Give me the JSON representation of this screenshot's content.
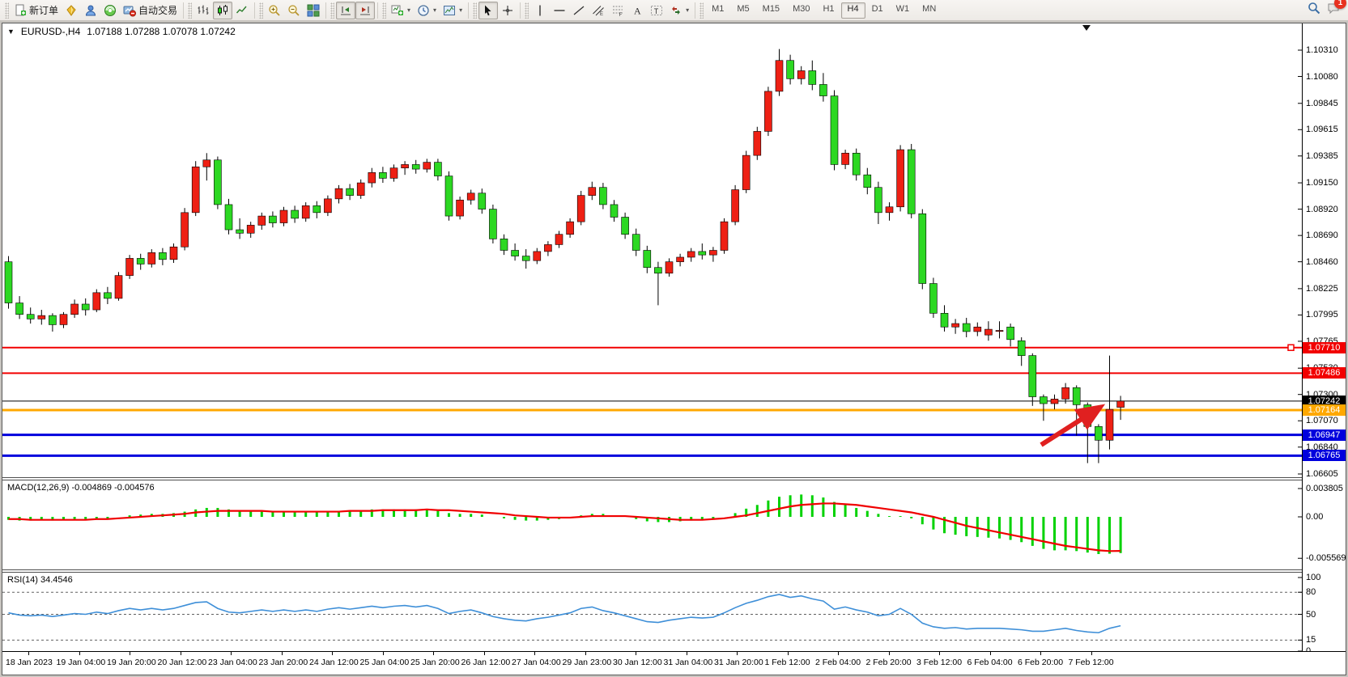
{
  "toolbar": {
    "groups": [
      {
        "items": [
          {
            "name": "new-order-button",
            "icon": "new-order",
            "label": "新订单"
          },
          {
            "name": "market-watch-icon",
            "icon": "gold"
          },
          {
            "name": "accounts-icon",
            "icon": "person"
          },
          {
            "name": "signals-icon",
            "icon": "signal"
          },
          {
            "name": "autotrading-button",
            "icon": "autotrade",
            "label": "自动交易"
          }
        ]
      },
      {
        "items": [
          {
            "name": "bar-chart-button",
            "icon": "bars"
          },
          {
            "name": "candlestick-chart-button",
            "icon": "candles",
            "active": true
          },
          {
            "name": "line-chart-button",
            "icon": "line"
          }
        ]
      },
      {
        "items": [
          {
            "name": "zoom-in-button",
            "icon": "zoom-in"
          },
          {
            "name": "zoom-out-button",
            "icon": "zoom-out"
          },
          {
            "name": "tile-windows-button",
            "icon": "tile"
          }
        ]
      },
      {
        "items": [
          {
            "name": "chart-shift-button",
            "icon": "shift",
            "active": true
          },
          {
            "name": "auto-scroll-button",
            "icon": "autoscroll",
            "active": true
          }
        ]
      },
      {
        "items": [
          {
            "name": "new-chart-button",
            "icon": "new-chart",
            "caret": true
          },
          {
            "name": "periods-button",
            "icon": "clock",
            "caret": true
          },
          {
            "name": "templates-button",
            "icon": "template",
            "caret": true
          }
        ]
      },
      {
        "items": [
          {
            "name": "cursor-button",
            "icon": "cursor",
            "active": true
          },
          {
            "name": "crosshair-button",
            "icon": "crosshair"
          }
        ]
      },
      {
        "items": [
          {
            "name": "vertical-line-button",
            "icon": "vline"
          },
          {
            "name": "horizontal-line-button",
            "icon": "hline"
          },
          {
            "name": "trendline-button",
            "icon": "trendline"
          },
          {
            "name": "equidistant-channel-button",
            "icon": "channel"
          },
          {
            "name": "fibonacci-button",
            "icon": "fibo"
          },
          {
            "name": "text-button",
            "icon": "text"
          },
          {
            "name": "text-label-button",
            "icon": "label"
          },
          {
            "name": "arrows-button",
            "icon": "arrows",
            "caret": true
          }
        ]
      }
    ],
    "timeframes": [
      "M1",
      "M5",
      "M15",
      "M30",
      "H1",
      "H4",
      "D1",
      "W1",
      "MN"
    ],
    "active_timeframe": "H4",
    "right": {
      "search_icon": "search",
      "chat_icon": "chat",
      "chat_badge": "1"
    }
  },
  "chart": {
    "title": {
      "symbol": "EURUSD-,H4",
      "ohlc": "1.07188  1.07288  1.07078  1.07242"
    },
    "price_axis_ticks": [
      "1.10310",
      "1.10080",
      "1.09845",
      "1.09615",
      "1.09385",
      "1.09150",
      "1.08920",
      "1.08690",
      "1.08460",
      "1.08225",
      "1.07995",
      "1.07765",
      "1.07530",
      "1.07300",
      "1.07070",
      "1.06840",
      "1.06605"
    ],
    "levels": [
      {
        "label": "1.07710",
        "price": 1.0771,
        "color": "#f20000",
        "width": 2,
        "marker": true
      },
      {
        "label": "1.07486",
        "price": 1.07486,
        "color": "#f20000",
        "width": 2
      },
      {
        "label": "1.07242",
        "price": 1.07242,
        "color": "#000000",
        "width": 1
      },
      {
        "label": "1.07164",
        "price": 1.07164,
        "color": "#ffa800",
        "width": 3
      },
      {
        "label": "1.06947",
        "price": 1.06947,
        "color": "#0000dd",
        "width": 3
      },
      {
        "label": "1.06765",
        "price": 1.06765,
        "color": "#0000dd",
        "width": 3
      }
    ],
    "time_axis": [
      "18 Jan 2023",
      "19 Jan 04:00",
      "19 Jan 20:00",
      "20 Jan 12:00",
      "23 Jan 04:00",
      "23 Jan 20:00",
      "24 Jan 12:00",
      "25 Jan 04:00",
      "25 Jan 20:00",
      "26 Jan 12:00",
      "27 Jan 04:00",
      "29 Jan 23:00",
      "30 Jan 12:00",
      "31 Jan 04:00",
      "31 Jan 20:00",
      "1 Feb 12:00",
      "2 Feb 04:00",
      "2 Feb 20:00",
      "3 Feb 12:00",
      "6 Feb 04:00",
      "6 Feb 20:00",
      "7 Feb 12:00"
    ],
    "colors": {
      "up": "#ee2014",
      "down": "#2cd822",
      "wick": "#000000",
      "arrow": "#e02020"
    }
  },
  "macd": {
    "label": "MACD(12,26,9) -0.004869 -0.004576",
    "axis": [
      "0.003805",
      "0.00",
      "-0.005569"
    ],
    "hist_color": "#00d200",
    "signal_color": "#f00000"
  },
  "rsi": {
    "label": "RSI(14) 34.4546",
    "axis": [
      "100",
      "80",
      "50",
      "15",
      "0"
    ],
    "level_lines": [
      80,
      50,
      15
    ],
    "line_color": "#3e8fd8"
  },
  "chart_data": {
    "type": "candlestick",
    "title": "EURUSD- H4",
    "price_range": [
      1.06605,
      1.1031
    ],
    "candles": [
      [
        1.0846,
        1.0851,
        1.0805,
        1.081
      ],
      [
        1.081,
        1.0816,
        1.0796,
        1.08
      ],
      [
        1.08,
        1.0806,
        1.0792,
        1.0796
      ],
      [
        1.0796,
        1.0804,
        1.0791,
        1.0799
      ],
      [
        1.0799,
        1.0801,
        1.0785,
        1.0791
      ],
      [
        1.0791,
        1.0802,
        1.0788,
        1.08
      ],
      [
        1.08,
        1.0813,
        1.0797,
        1.0809
      ],
      [
        1.0809,
        1.0814,
        1.0799,
        1.0804
      ],
      [
        1.0804,
        1.0822,
        1.0802,
        1.0819
      ],
      [
        1.0819,
        1.0824,
        1.0809,
        1.0814
      ],
      [
        1.0814,
        1.0837,
        1.0812,
        1.0834
      ],
      [
        1.0834,
        1.0852,
        1.0831,
        1.0849
      ],
      [
        1.0849,
        1.0853,
        1.0839,
        1.0844
      ],
      [
        1.0844,
        1.0857,
        1.0841,
        1.0854
      ],
      [
        1.0854,
        1.0858,
        1.0843,
        1.0848
      ],
      [
        1.0848,
        1.0862,
        1.0845,
        1.0859
      ],
      [
        1.0859,
        1.0893,
        1.0856,
        1.0889
      ],
      [
        1.0889,
        1.0934,
        1.0886,
        1.0929
      ],
      [
        1.0929,
        1.0941,
        1.0917,
        1.0935
      ],
      [
        1.0935,
        1.0938,
        1.0892,
        1.0896
      ],
      [
        1.0896,
        1.0901,
        1.087,
        1.0874
      ],
      [
        1.0874,
        1.0884,
        1.0866,
        1.0871
      ],
      [
        1.0871,
        1.0881,
        1.0867,
        1.0878
      ],
      [
        1.0878,
        1.0889,
        1.0874,
        1.0886
      ],
      [
        1.0886,
        1.089,
        1.0876,
        1.088
      ],
      [
        1.088,
        1.0894,
        1.0877,
        1.0891
      ],
      [
        1.0891,
        1.0895,
        1.088,
        1.0884
      ],
      [
        1.0884,
        1.0898,
        1.0881,
        1.0895
      ],
      [
        1.0895,
        1.0899,
        1.0884,
        1.0889
      ],
      [
        1.0889,
        1.0904,
        1.0886,
        1.0901
      ],
      [
        1.0901,
        1.0913,
        1.0897,
        1.091
      ],
      [
        1.091,
        1.0914,
        1.09,
        1.0904
      ],
      [
        1.0904,
        1.0918,
        1.0901,
        1.0915
      ],
      [
        1.0915,
        1.0928,
        1.0911,
        1.0924
      ],
      [
        1.0924,
        1.0929,
        1.0915,
        1.0919
      ],
      [
        1.0919,
        1.0931,
        1.0916,
        1.0928
      ],
      [
        1.0928,
        1.0934,
        1.0922,
        1.0931
      ],
      [
        1.0931,
        1.0935,
        1.0923,
        1.0927
      ],
      [
        1.0927,
        1.0936,
        1.0924,
        1.0933
      ],
      [
        1.0933,
        1.0936,
        1.0917,
        1.0921
      ],
      [
        1.0921,
        1.0925,
        1.0882,
        1.0886
      ],
      [
        1.0886,
        1.0903,
        1.0883,
        1.09
      ],
      [
        1.09,
        1.0909,
        1.0896,
        1.0906
      ],
      [
        1.0906,
        1.091,
        1.0888,
        1.0892
      ],
      [
        1.0892,
        1.0896,
        1.0862,
        1.0866
      ],
      [
        1.0866,
        1.087,
        1.0852,
        1.0856
      ],
      [
        1.0856,
        1.0862,
        1.0847,
        1.0851
      ],
      [
        1.0851,
        1.0857,
        1.084,
        1.0847
      ],
      [
        1.0847,
        1.0858,
        1.0844,
        1.0855
      ],
      [
        1.0855,
        1.0864,
        1.0851,
        1.0861
      ],
      [
        1.0861,
        1.0873,
        1.0858,
        1.087
      ],
      [
        1.087,
        1.0884,
        1.0867,
        1.0881
      ],
      [
        1.0881,
        1.0908,
        1.0878,
        1.0904
      ],
      [
        1.0904,
        1.0916,
        1.09,
        1.0911
      ],
      [
        1.0911,
        1.0915,
        1.0892,
        1.0896
      ],
      [
        1.0896,
        1.09,
        1.0881,
        1.0885
      ],
      [
        1.0885,
        1.0889,
        1.0866,
        1.087
      ],
      [
        1.087,
        1.0875,
        1.0851,
        1.0856
      ],
      [
        1.0856,
        1.086,
        1.0836,
        1.0841
      ],
      [
        1.0841,
        1.0846,
        1.0808,
        1.0836
      ],
      [
        1.0836,
        1.0849,
        1.0833,
        1.0846
      ],
      [
        1.0846,
        1.0853,
        1.0842,
        1.085
      ],
      [
        1.085,
        1.0858,
        1.0846,
        1.0855
      ],
      [
        1.0855,
        1.0862,
        1.0848,
        1.0852
      ],
      [
        1.0852,
        1.0859,
        1.0846,
        1.0856
      ],
      [
        1.0856,
        1.0884,
        1.0853,
        1.0881
      ],
      [
        1.0881,
        1.0913,
        1.0878,
        1.0909
      ],
      [
        1.0909,
        1.0943,
        1.0906,
        1.0939
      ],
      [
        1.0939,
        1.0964,
        1.0935,
        1.096
      ],
      [
        1.096,
        1.0999,
        1.0956,
        1.0995
      ],
      [
        1.0995,
        1.1032,
        1.0991,
        1.1022
      ],
      [
        1.1022,
        1.1027,
        1.1001,
        1.1006
      ],
      [
        1.1006,
        1.1017,
        1.1001,
        1.1013
      ],
      [
        1.1013,
        1.1022,
        1.0996,
        1.1001
      ],
      [
        1.1001,
        1.1011,
        1.0986,
        1.0991
      ],
      [
        1.0991,
        1.0996,
        1.0926,
        1.0931
      ],
      [
        1.0931,
        1.0944,
        1.0927,
        1.0941
      ],
      [
        1.0941,
        1.0945,
        1.0917,
        1.0922
      ],
      [
        1.0922,
        1.0928,
        1.0905,
        1.0911
      ],
      [
        1.0911,
        1.0916,
        1.0879,
        1.0889
      ],
      [
        1.0889,
        1.0898,
        1.0882,
        1.0894
      ],
      [
        1.0894,
        1.0948,
        1.089,
        1.0944
      ],
      [
        1.0944,
        1.0949,
        1.0884,
        1.0888
      ],
      [
        1.0888,
        1.0892,
        1.0822,
        1.0827
      ],
      [
        1.0827,
        1.0832,
        1.0797,
        1.0801
      ],
      [
        1.0801,
        1.0808,
        1.0785,
        1.0789
      ],
      [
        1.0789,
        1.0796,
        1.0783,
        1.0792
      ],
      [
        1.0792,
        1.0797,
        1.078,
        1.0785
      ],
      [
        1.0785,
        1.0793,
        1.0781,
        1.0789
      ],
      [
        1.0782,
        1.0794,
        1.0777,
        1.0787
      ],
      [
        1.0786,
        1.0794,
        1.0779,
        1.0786
      ],
      [
        1.0789,
        1.0792,
        1.0772,
        1.0778
      ],
      [
        1.0777,
        1.078,
        1.0755,
        1.0764
      ],
      [
        1.0764,
        1.0766,
        1.072,
        1.0728
      ],
      [
        1.0728,
        1.073,
        1.0707,
        1.0722
      ],
      [
        1.0722,
        1.073,
        1.0717,
        1.0726
      ],
      [
        1.0726,
        1.074,
        1.0722,
        1.0736
      ],
      [
        1.0736,
        1.0738,
        1.0694,
        1.0721
      ],
      [
        1.0721,
        1.0723,
        1.067,
        1.0702
      ],
      [
        1.0702,
        1.0704,
        1.067,
        1.069
      ],
      [
        1.069,
        1.0764,
        1.0682,
        1.0717
      ],
      [
        1.07188,
        1.07288,
        1.07078,
        1.07242
      ]
    ],
    "macd_hist": [
      -0.0004,
      -0.0005,
      -0.0005,
      -0.0004,
      -0.0005,
      -0.0004,
      -0.0003,
      -0.0003,
      -0.0002,
      -0.0002,
      0.0,
      0.0002,
      0.0003,
      0.0004,
      0.0004,
      0.0005,
      0.0007,
      0.001,
      0.0012,
      0.0012,
      0.001,
      0.0008,
      0.0007,
      0.0007,
      0.0006,
      0.0006,
      0.0006,
      0.0006,
      0.0006,
      0.0007,
      0.0008,
      0.0008,
      0.0009,
      0.001,
      0.001,
      0.001,
      0.001,
      0.001,
      0.001,
      0.0008,
      0.0005,
      0.0004,
      0.0004,
      0.0003,
      0.0,
      -0.0002,
      -0.0004,
      -0.0005,
      -0.0005,
      -0.0004,
      -0.0003,
      -0.0001,
      0.0002,
      0.0004,
      0.0004,
      0.0002,
      0.0,
      -0.0003,
      -0.0006,
      -0.0007,
      -0.0007,
      -0.0006,
      -0.0005,
      -0.0004,
      -0.0003,
      0.0,
      0.0005,
      0.0011,
      0.0016,
      0.0022,
      0.0027,
      0.0029,
      0.003,
      0.0029,
      0.0026,
      0.002,
      0.0016,
      0.0012,
      0.0008,
      0.0004,
      0.0001,
      0.0001,
      -0.0002,
      -0.001,
      -0.0017,
      -0.0022,
      -0.0024,
      -0.0026,
      -0.0027,
      -0.0028,
      -0.0029,
      -0.0031,
      -0.0034,
      -0.0039,
      -0.0043,
      -0.0045,
      -0.0045,
      -0.0046,
      -0.0048,
      -0.005,
      -0.00495,
      -0.004869
    ],
    "macd_signal": [
      -0.0003,
      -0.0003,
      -0.0004,
      -0.0004,
      -0.0004,
      -0.0004,
      -0.0004,
      -0.0004,
      -0.0003,
      -0.0003,
      -0.0002,
      -0.0001,
      0.0,
      0.0001,
      0.0002,
      0.0003,
      0.0004,
      0.0006,
      0.0007,
      0.0008,
      0.0008,
      0.0008,
      0.0008,
      0.0008,
      0.0007,
      0.0007,
      0.0007,
      0.0007,
      0.0007,
      0.0007,
      0.0007,
      0.0008,
      0.0008,
      0.0008,
      0.0009,
      0.0009,
      0.0009,
      0.0009,
      0.001,
      0.0009,
      0.0009,
      0.0008,
      0.0007,
      0.0006,
      0.0005,
      0.0004,
      0.0002,
      0.0001,
      0.0,
      -0.0001,
      -0.0001,
      -0.0001,
      0.0,
      0.0001,
      0.0001,
      0.0001,
      0.0001,
      0.0,
      -0.0001,
      -0.0002,
      -0.0003,
      -0.0004,
      -0.0004,
      -0.0004,
      -0.0003,
      -0.0002,
      0.0,
      0.0002,
      0.0005,
      0.0008,
      0.0011,
      0.0014,
      0.0016,
      0.0017,
      0.0018,
      0.0018,
      0.0017,
      0.0016,
      0.0014,
      0.0012,
      0.001,
      0.0008,
      0.0006,
      0.0003,
      0.0,
      -0.0004,
      -0.0008,
      -0.0012,
      -0.0015,
      -0.0018,
      -0.0021,
      -0.0024,
      -0.0027,
      -0.003,
      -0.0033,
      -0.0036,
      -0.0039,
      -0.0041,
      -0.0043,
      -0.0045,
      -0.0046,
      -0.004576
    ],
    "rsi": [
      52,
      49,
      48,
      49,
      47,
      49,
      51,
      50,
      53,
      51,
      55,
      58,
      56,
      58,
      56,
      58,
      62,
      66,
      67,
      58,
      53,
      52,
      54,
      56,
      54,
      56,
      54,
      56,
      54,
      57,
      59,
      57,
      59,
      61,
      59,
      61,
      62,
      60,
      62,
      58,
      51,
      54,
      56,
      52,
      47,
      44,
      42,
      41,
      44,
      46,
      49,
      52,
      58,
      60,
      55,
      52,
      48,
      44,
      40,
      39,
      42,
      44,
      46,
      45,
      46,
      52,
      59,
      65,
      69,
      74,
      77,
      73,
      75,
      71,
      68,
      57,
      60,
      56,
      53,
      48,
      50,
      58,
      50,
      38,
      33,
      31,
      32,
      30,
      31,
      31,
      31,
      30,
      29,
      27,
      27,
      29,
      31,
      28,
      26,
      25,
      31,
      34.45
    ]
  }
}
